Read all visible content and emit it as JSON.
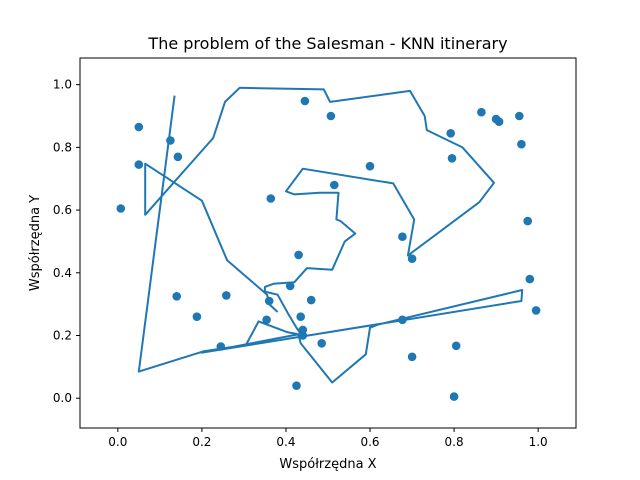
{
  "chart_data": {
    "type": "scatter",
    "title": "The problem of the Salesman - KNN itinerary",
    "xlabel": "Współrzędna X",
    "ylabel": "Współrzędna Y",
    "xlim": [
      -0.09,
      1.09
    ],
    "ylim": [
      -0.095,
      1.085
    ],
    "xticks": [
      0.0,
      0.2,
      0.4,
      0.6,
      0.8,
      1.0
    ],
    "xtick_labels": [
      "0.0",
      "0.2",
      "0.4",
      "0.6",
      "0.8",
      "1.0"
    ],
    "yticks": [
      0.0,
      0.2,
      0.4,
      0.6,
      0.8,
      1.0
    ],
    "ytick_labels": [
      "0.0",
      "0.2",
      "0.4",
      "0.6",
      "0.8",
      "1.0"
    ],
    "grid": false,
    "colors": {
      "series": "#1f77b4"
    },
    "series": [
      {
        "kind": "points",
        "x": [
          0.007,
          0.05,
          0.05,
          0.125,
          0.143,
          0.14,
          0.188,
          0.245,
          0.258,
          0.354,
          0.36,
          0.364,
          0.41,
          0.43,
          0.435,
          0.44,
          0.44,
          0.445,
          0.46,
          0.485,
          0.507,
          0.515,
          0.6,
          0.677,
          0.677,
          0.7,
          0.7,
          0.792,
          0.795,
          0.8,
          0.805,
          0.865,
          0.9,
          0.907,
          0.955,
          0.96,
          0.975,
          0.98,
          0.995,
          0.425
        ],
        "y": [
          0.605,
          0.865,
          0.745,
          0.822,
          0.77,
          0.325,
          0.26,
          0.165,
          0.328,
          0.25,
          0.31,
          0.637,
          0.358,
          0.457,
          0.26,
          0.218,
          0.2,
          0.948,
          0.313,
          0.175,
          0.9,
          0.68,
          0.74,
          0.515,
          0.25,
          0.445,
          0.132,
          0.845,
          0.765,
          0.005,
          0.167,
          0.912,
          0.89,
          0.882,
          0.9,
          0.81,
          0.565,
          0.38,
          0.28,
          0.04
        ]
      },
      {
        "kind": "route",
        "x": [
          0.135,
          0.05,
          0.205,
          0.305,
          0.335,
          0.405,
          0.425,
          0.43,
          0.435,
          0.51,
          0.59,
          0.6,
          0.62,
          0.962,
          0.96,
          0.2,
          0.435,
          0.425,
          0.405,
          0.38,
          0.35,
          0.35,
          0.37,
          0.42,
          0.45,
          0.51,
          0.54,
          0.565,
          0.53,
          0.52,
          0.525,
          0.48,
          0.42,
          0.4,
          0.44,
          0.655,
          0.705,
          0.69,
          0.86,
          0.895,
          0.82,
          0.735,
          0.73,
          0.695,
          0.505,
          0.49,
          0.29,
          0.255,
          0.227,
          0.065,
          0.065,
          0.2,
          0.26,
          0.355,
          0.36,
          0.38
        ],
        "y": [
          0.965,
          0.085,
          0.15,
          0.17,
          0.245,
          0.21,
          0.205,
          0.2,
          0.175,
          0.05,
          0.14,
          0.225,
          0.235,
          0.345,
          0.31,
          0.145,
          0.205,
          0.225,
          0.27,
          0.33,
          0.34,
          0.355,
          0.365,
          0.37,
          0.415,
          0.41,
          0.5,
          0.525,
          0.565,
          0.57,
          0.655,
          0.655,
          0.65,
          0.66,
          0.732,
          0.685,
          0.57,
          0.455,
          0.625,
          0.687,
          0.8,
          0.855,
          0.9,
          0.98,
          0.945,
          0.985,
          0.99,
          0.945,
          0.83,
          0.585,
          0.748,
          0.63,
          0.44,
          0.33,
          0.3,
          0.275
        ]
      }
    ]
  }
}
